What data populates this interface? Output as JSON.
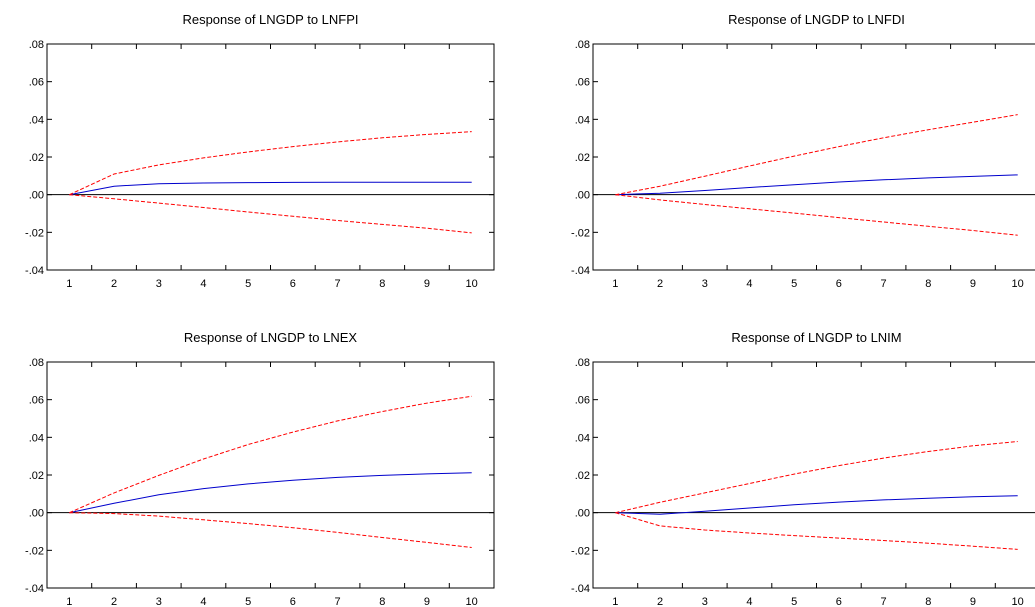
{
  "chart_data": [
    {
      "type": "line",
      "title": "Response of LNGDP to LNFPI",
      "x": [
        1,
        2,
        3,
        4,
        5,
        6,
        7,
        8,
        9,
        10
      ],
      "ylim": [
        -0.04,
        0.08
      ],
      "yticks": [
        ".08",
        ".06",
        ".04",
        ".02",
        ".00",
        "-.02",
        "-.04"
      ],
      "xticks": [
        "1",
        "2",
        "3",
        "4",
        "5",
        "6",
        "7",
        "8",
        "9",
        "10"
      ],
      "series": [
        {
          "role": "response",
          "color": "#0000cc",
          "style": "solid",
          "values": [
            0.0,
            0.0045,
            0.0058,
            0.0062,
            0.0064,
            0.0065,
            0.0066,
            0.0066,
            0.0066,
            0.0066
          ]
        },
        {
          "role": "upper band",
          "color": "#ff0000",
          "style": "dashed",
          "values": [
            0.0,
            0.011,
            0.0158,
            0.0195,
            0.0227,
            0.0255,
            0.028,
            0.0302,
            0.032,
            0.0335
          ]
        },
        {
          "role": "lower band",
          "color": "#ff0000",
          "style": "dashed",
          "values": [
            0.0,
            -0.0022,
            -0.0045,
            -0.0068,
            -0.0092,
            -0.0115,
            -0.0137,
            -0.0158,
            -0.0178,
            -0.0203
          ]
        }
      ]
    },
    {
      "type": "line",
      "title": "Response of LNGDP to LNFDI",
      "x": [
        1,
        2,
        3,
        4,
        5,
        6,
        7,
        8,
        9,
        10
      ],
      "ylim": [
        -0.04,
        0.08
      ],
      "yticks": [
        ".08",
        ".06",
        ".04",
        ".02",
        ".00",
        "-.02",
        "-.04"
      ],
      "xticks": [
        "1",
        "2",
        "3",
        "4",
        "5",
        "6",
        "7",
        "8",
        "9",
        "10"
      ],
      "series": [
        {
          "role": "response",
          "color": "#0000cc",
          "style": "solid",
          "values": [
            0.0,
            0.0008,
            0.0022,
            0.0038,
            0.0053,
            0.0067,
            0.0079,
            0.0089,
            0.0097,
            0.0105
          ]
        },
        {
          "role": "upper band",
          "color": "#ff0000",
          "style": "dashed",
          "values": [
            0.0,
            0.0045,
            0.0098,
            0.0152,
            0.0205,
            0.0255,
            0.0302,
            0.0345,
            0.0385,
            0.0425
          ]
        },
        {
          "role": "lower band",
          "color": "#ff0000",
          "style": "dashed",
          "values": [
            0.0,
            -0.0028,
            -0.0052,
            -0.0075,
            -0.0098,
            -0.0122,
            -0.0145,
            -0.0168,
            -0.019,
            -0.0215
          ]
        }
      ]
    },
    {
      "type": "line",
      "title": "Response of LNGDP to LNEX",
      "x": [
        1,
        2,
        3,
        4,
        5,
        6,
        7,
        8,
        9,
        10
      ],
      "ylim": [
        -0.04,
        0.08
      ],
      "yticks": [
        ".08",
        ".06",
        ".04",
        ".02",
        ".00",
        "-.02",
        "-.04"
      ],
      "xticks": [
        "1",
        "2",
        "3",
        "4",
        "5",
        "6",
        "7",
        "8",
        "9",
        "10"
      ],
      "series": [
        {
          "role": "response",
          "color": "#0000cc",
          "style": "solid",
          "values": [
            0.0,
            0.005,
            0.0095,
            0.0128,
            0.0153,
            0.0172,
            0.0187,
            0.0198,
            0.0206,
            0.0212
          ]
        },
        {
          "role": "upper band",
          "color": "#ff0000",
          "style": "dashed",
          "values": [
            0.0,
            0.0105,
            0.0198,
            0.0285,
            0.0362,
            0.0428,
            0.0487,
            0.0537,
            0.0582,
            0.0618
          ]
        },
        {
          "role": "lower band",
          "color": "#ff0000",
          "style": "dashed",
          "values": [
            0.0,
            -0.0005,
            -0.0018,
            -0.0038,
            -0.0058,
            -0.008,
            -0.0105,
            -0.0132,
            -0.0158,
            -0.0185
          ]
        }
      ]
    },
    {
      "type": "line",
      "title": "Response of LNGDP to LNIM",
      "x": [
        1,
        2,
        3,
        4,
        5,
        6,
        7,
        8,
        9,
        10
      ],
      "ylim": [
        -0.04,
        0.08
      ],
      "yticks": [
        ".08",
        ".06",
        ".04",
        ".02",
        ".00",
        "-.02",
        "-.04"
      ],
      "xticks": [
        "1",
        "2",
        "3",
        "4",
        "5",
        "6",
        "7",
        "8",
        "9",
        "10"
      ],
      "series": [
        {
          "role": "response",
          "color": "#0000cc",
          "style": "solid",
          "values": [
            0.0,
            -0.0008,
            0.0008,
            0.0025,
            0.0042,
            0.0056,
            0.0068,
            0.0077,
            0.0084,
            0.009
          ]
        },
        {
          "role": "upper band",
          "color": "#ff0000",
          "style": "dashed",
          "values": [
            0.0,
            0.0055,
            0.0105,
            0.0155,
            0.0205,
            0.025,
            0.029,
            0.0325,
            0.0355,
            0.0378
          ]
        },
        {
          "role": "lower band",
          "color": "#ff0000",
          "style": "dashed",
          "values": [
            0.0,
            -0.007,
            -0.0092,
            -0.0108,
            -0.0122,
            -0.0135,
            -0.0148,
            -0.0162,
            -0.0178,
            -0.0195
          ]
        }
      ]
    }
  ]
}
